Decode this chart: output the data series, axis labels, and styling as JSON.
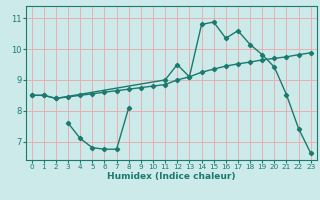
{
  "xlabel": "Humidex (Indice chaleur)",
  "xlim": [
    -0.5,
    23.5
  ],
  "ylim": [
    6.4,
    11.4
  ],
  "xticks": [
    0,
    1,
    2,
    3,
    4,
    5,
    6,
    7,
    8,
    9,
    10,
    11,
    12,
    13,
    14,
    15,
    16,
    17,
    18,
    19,
    20,
    21,
    22,
    23
  ],
  "yticks": [
    7,
    8,
    9,
    10,
    11
  ],
  "bg_color": "#cceaea",
  "grid_color": "#e8b0b0",
  "line_color": "#1a7a6e",
  "line1_x": [
    3,
    4,
    5,
    6,
    7,
    8
  ],
  "line1_y": [
    7.6,
    7.1,
    6.8,
    6.75,
    6.75,
    8.1
  ],
  "line2_x": [
    0,
    1,
    2,
    3,
    4,
    5,
    6,
    7,
    8,
    9,
    10,
    11,
    12,
    13,
    14,
    15,
    16,
    17,
    18,
    19,
    20,
    21,
    22,
    23
  ],
  "line2_y": [
    8.5,
    8.5,
    8.4,
    8.45,
    8.5,
    8.55,
    8.6,
    8.65,
    8.7,
    8.75,
    8.8,
    8.85,
    9.0,
    9.1,
    9.25,
    9.35,
    9.45,
    9.52,
    9.58,
    9.65,
    9.7,
    9.75,
    9.82,
    9.88
  ],
  "line3_x": [
    0,
    1,
    2,
    11,
    12,
    13,
    14,
    15,
    16,
    17,
    18,
    19,
    20,
    21,
    22,
    23
  ],
  "line3_y": [
    8.5,
    8.5,
    8.4,
    9.0,
    9.5,
    9.1,
    10.8,
    10.88,
    10.35,
    10.6,
    10.15,
    9.82,
    9.42,
    8.52,
    7.42,
    6.62
  ]
}
